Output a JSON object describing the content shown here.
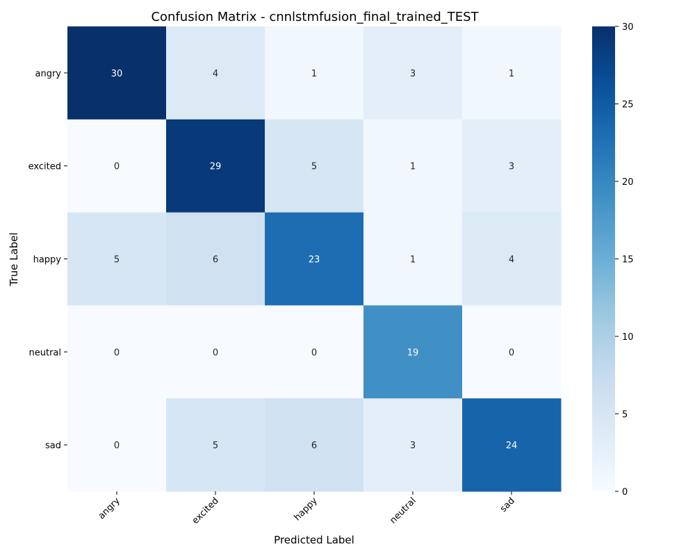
{
  "chart_data": {
    "type": "heatmap",
    "title": "Confusion Matrix - cnnlstmfusion_final_trained_TEST",
    "xlabel": "Predicted Label",
    "ylabel": "True Label",
    "x_categories": [
      "angry",
      "excited",
      "happy",
      "neutral",
      "sad"
    ],
    "y_categories": [
      "angry",
      "excited",
      "happy",
      "neutral",
      "sad"
    ],
    "values": [
      [
        30,
        4,
        1,
        3,
        1
      ],
      [
        0,
        29,
        5,
        1,
        3
      ],
      [
        5,
        6,
        23,
        1,
        4
      ],
      [
        0,
        0,
        0,
        19,
        0
      ],
      [
        0,
        5,
        6,
        3,
        24
      ]
    ],
    "colorbar": {
      "min": 0,
      "max": 30,
      "ticks": [
        0,
        5,
        10,
        15,
        20,
        25,
        30
      ],
      "colormap": "Blues"
    }
  }
}
